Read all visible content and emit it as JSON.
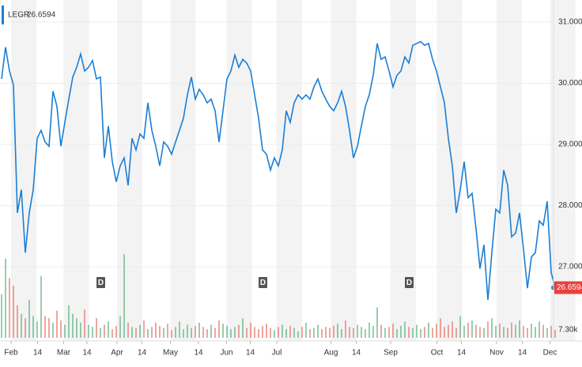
{
  "chart_data": {
    "type": "line",
    "series": [
      {
        "name": "LEGR",
        "color": "#1a7fd6",
        "values": [
          30.07,
          30.59,
          30.2,
          29.97,
          27.88,
          28.26,
          27.23,
          27.88,
          28.26,
          29.1,
          29.23,
          29.04,
          28.97,
          29.87,
          29.62,
          28.97,
          29.36,
          29.74,
          30.1,
          30.26,
          30.48,
          30.2,
          30.26,
          30.37,
          30.07,
          30.1,
          28.78,
          29.3,
          28.72,
          28.39,
          28.65,
          28.78,
          28.33,
          29.1,
          28.91,
          29.17,
          29.1,
          29.68,
          29.23,
          28.97,
          28.65,
          29.04,
          28.97,
          28.84,
          29.04,
          29.23,
          29.43,
          29.81,
          30.1,
          29.74,
          29.9,
          29.81,
          29.68,
          29.74,
          29.55,
          29.04,
          29.55,
          30.07,
          30.2,
          30.46,
          30.26,
          30.39,
          30.33,
          30.2,
          29.81,
          29.43,
          28.91,
          28.84,
          28.58,
          28.78,
          28.65,
          28.91,
          29.55,
          29.36,
          29.68,
          29.81,
          29.74,
          29.81,
          29.74,
          29.94,
          30.07,
          29.87,
          29.74,
          29.62,
          29.55,
          29.68,
          29.87,
          29.62,
          29.23,
          28.78,
          28.97,
          29.3,
          29.62,
          29.81,
          30.13,
          30.65,
          30.39,
          30.43,
          30.2,
          29.94,
          30.13,
          30.2,
          30.43,
          30.33,
          30.62,
          30.65,
          30.68,
          30.62,
          30.65,
          30.39,
          30.2,
          29.94,
          29.68,
          29.1,
          28.65,
          27.88,
          28.26,
          28.72,
          28.13,
          28.2,
          27.62,
          26.97,
          27.36,
          26.46,
          27.23,
          27.94,
          27.88,
          28.58,
          28.33,
          27.49,
          27.55,
          27.88,
          27.29,
          26.65,
          27.16,
          27.23,
          27.75,
          27.68,
          28.07,
          26.91,
          26.6594
        ]
      }
    ],
    "xlim": [
      0,
      140
    ],
    "xticks": [
      {
        "value": 2.4,
        "label": "Feb"
      },
      {
        "value": 9.1,
        "label": "14"
      },
      {
        "value": 15.7,
        "label": "Mar"
      },
      {
        "value": 21.6,
        "label": "14"
      },
      {
        "value": 29.2,
        "label": "Apr"
      },
      {
        "value": 35.5,
        "label": "14"
      },
      {
        "value": 42.7,
        "label": "May"
      },
      {
        "value": 49.8,
        "label": "14"
      },
      {
        "value": 56.9,
        "label": "Jun"
      },
      {
        "value": 62.9,
        "label": "14"
      },
      {
        "value": 69.6,
        "label": "Jul"
      },
      {
        "value": 83.3,
        "label": "Aug"
      },
      {
        "value": 89.7,
        "label": "14"
      },
      {
        "value": 98.4,
        "label": "Sep"
      },
      {
        "value": 110.1,
        "label": "Oct"
      },
      {
        "value": 116.3,
        "label": "14"
      },
      {
        "value": 125.2,
        "label": "Nov"
      },
      {
        "value": 131.7,
        "label": "14"
      },
      {
        "value": 138.7,
        "label": "Dec"
      }
    ],
    "ylim": [
      25.84,
      31.36
    ],
    "yticks": [
      {
        "value": 27,
        "label": "27.0000"
      },
      {
        "value": 28,
        "label": "28.0000"
      },
      {
        "value": 29,
        "label": "29.0000"
      },
      {
        "value": 30,
        "label": "30.0000"
      },
      {
        "value": 31,
        "label": "31.0000"
      }
    ],
    "grid": true,
    "last_color": "#e8413c",
    "markers": [
      {
        "x": 25,
        "label": "D"
      },
      {
        "x": 66,
        "label": "D"
      },
      {
        "x": 103,
        "label": "D"
      }
    ],
    "volume": {
      "up_color": "#4caf7a",
      "down_color": "#e8685e",
      "ylim": [
        0,
        80000
      ],
      "yticks": [
        {
          "value": 7300,
          "label": "7.30k"
        }
      ],
      "values": [
        40000,
        73000,
        55000,
        48000,
        30000,
        22000,
        18000,
        35000,
        20000,
        15000,
        57000,
        20000,
        18000,
        14000,
        25000,
        16000,
        12000,
        30000,
        22000,
        18000,
        14000,
        26000,
        12000,
        10000,
        18000,
        9000,
        12000,
        15000,
        8000,
        11000,
        20000,
        77000,
        14000,
        10000,
        9000,
        12000,
        16000,
        8000,
        10000,
        14000,
        11000,
        9000,
        13000,
        7000,
        10000,
        15000,
        8000,
        12000,
        9000,
        11000,
        14000,
        10000,
        8000,
        12000,
        9000,
        16000,
        13000,
        11000,
        8000,
        10000,
        12000,
        18000,
        9000,
        14000,
        10000,
        8000,
        11000,
        13000,
        9000,
        7000,
        10000,
        12000,
        8000,
        11000,
        9000,
        6000,
        10000,
        14000,
        8000,
        9000,
        12000,
        8000,
        10000,
        9000,
        11000,
        13000,
        8000,
        16000,
        10000,
        9000,
        12000,
        10000,
        8000,
        14000,
        11000,
        28000,
        12000,
        9000,
        10000,
        13000,
        8000,
        11000,
        15000,
        10000,
        9000,
        12000,
        8000,
        10000,
        14000,
        9000,
        13000,
        18000,
        10000,
        12000,
        15000,
        9000,
        20000,
        11000,
        14000,
        16000,
        12000,
        10000,
        9000,
        15000,
        18000,
        11000,
        13000,
        10000,
        9000,
        14000,
        12000,
        16000,
        11000,
        9000,
        13000,
        10000,
        15000,
        12000,
        9000,
        11000,
        7300
      ]
    }
  }
}
